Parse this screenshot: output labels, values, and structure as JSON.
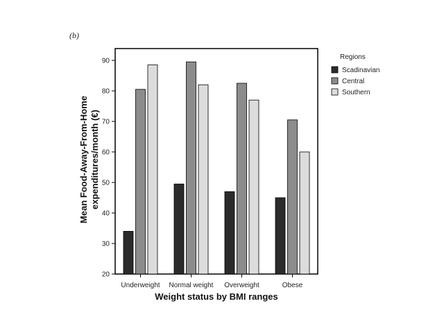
{
  "panel_label": "(b)",
  "chart_data": {
    "type": "bar",
    "title": "",
    "xlabel": "Weight status by BMI ranges",
    "ylabel_line1": "Mean Food-Away-From-Home",
    "ylabel_line2": "expenditures/month (€)",
    "categories": [
      "Underweight",
      "Normal weight",
      "Overweight",
      "Obese"
    ],
    "ylim": [
      20,
      95
    ],
    "yticks": [
      20,
      30,
      40,
      50,
      60,
      70,
      80,
      90
    ],
    "grid": false,
    "legend_title": "Regions",
    "legend_position": "right",
    "series": [
      {
        "name": "Scadinavian",
        "color": "#2b2b2b",
        "values": [
          34,
          49.5,
          47,
          45
        ]
      },
      {
        "name": "Central",
        "color": "#8c8c8c",
        "values": [
          80.5,
          89.5,
          82.5,
          70.5
        ]
      },
      {
        "name": "Southern",
        "color": "#dcdcdc",
        "values": [
          88.5,
          82,
          77,
          60
        ]
      }
    ]
  }
}
